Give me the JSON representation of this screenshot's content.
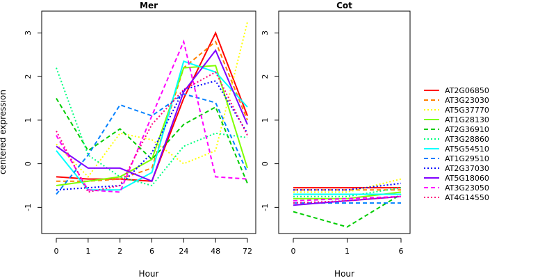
{
  "chart_data": {
    "type": "line",
    "ylabel": "centered expression",
    "xlabel": "Hour",
    "ylim": [
      -1.6,
      3.5
    ],
    "yticks": [
      -1,
      0,
      1,
      2,
      3
    ],
    "legend_position": "right",
    "grid": false,
    "legend": [
      {
        "name": "AT2G06850",
        "color": "#FF0000",
        "dash": "solid"
      },
      {
        "name": "AT3G23030",
        "color": "#FF8000",
        "dash": "dashed"
      },
      {
        "name": "AT5G37770",
        "color": "#FFFF00",
        "dash": "dotted"
      },
      {
        "name": "AT1G28130",
        "color": "#80FF00",
        "dash": "solid"
      },
      {
        "name": "AT2G36910",
        "color": "#00CC00",
        "dash": "dashed"
      },
      {
        "name": "AT3G28860",
        "color": "#00FF80",
        "dash": "dotted"
      },
      {
        "name": "AT5G54510",
        "color": "#00FFFF",
        "dash": "solid"
      },
      {
        "name": "AT1G29510",
        "color": "#0080FF",
        "dash": "dashed"
      },
      {
        "name": "AT2G37030",
        "color": "#0000FF",
        "dash": "dotted"
      },
      {
        "name": "AT5G18060",
        "color": "#8000FF",
        "dash": "solid"
      },
      {
        "name": "AT3G23050",
        "color": "#FF00FF",
        "dash": "dashed"
      },
      {
        "name": "AT4G14550",
        "color": "#FF0080",
        "dash": "dotted"
      }
    ],
    "panels": [
      {
        "title": "Mer",
        "categories": [
          "0",
          "1",
          "2",
          "6",
          "24",
          "48",
          "72"
        ],
        "series": [
          [
            -0.3,
            -0.35,
            -0.35,
            -0.4,
            1.5,
            3.0,
            1.1
          ],
          [
            -0.4,
            -0.4,
            -0.35,
            -0.1,
            2.2,
            2.8,
            1.0
          ],
          [
            0.45,
            -0.3,
            0.7,
            0.55,
            0.0,
            0.3,
            3.25
          ],
          [
            -0.5,
            -0.4,
            -0.3,
            0.1,
            2.2,
            2.25,
            -0.1
          ],
          [
            1.5,
            0.3,
            0.8,
            0.1,
            0.9,
            1.3,
            -0.45
          ],
          [
            2.2,
            0.2,
            -0.3,
            -0.5,
            0.4,
            0.7,
            0.6
          ],
          [
            0.3,
            -0.6,
            -0.6,
            -0.2,
            2.35,
            2.1,
            1.3
          ],
          [
            -0.7,
            0.2,
            1.35,
            1.1,
            1.6,
            1.4,
            -0.2
          ],
          [
            -0.6,
            -0.55,
            -0.5,
            0.25,
            1.7,
            1.9,
            0.7
          ],
          [
            0.4,
            -0.1,
            -0.1,
            -0.4,
            1.65,
            2.6,
            0.9
          ],
          [
            0.65,
            -0.6,
            -0.65,
            1.1,
            2.8,
            -0.3,
            -0.35
          ],
          [
            0.75,
            -0.65,
            -0.5,
            0.9,
            1.7,
            2.1,
            0.65
          ]
        ]
      },
      {
        "title": "Cot",
        "categories": [
          "0",
          "1",
          "6"
        ],
        "series": [
          [
            -0.55,
            -0.55,
            -0.55
          ],
          [
            -0.6,
            -0.6,
            -0.6
          ],
          [
            -0.65,
            -0.65,
            -0.35
          ],
          [
            -0.8,
            -0.8,
            -0.65
          ],
          [
            -1.1,
            -1.45,
            -0.7
          ],
          [
            -0.75,
            -0.75,
            -0.55
          ],
          [
            -0.7,
            -0.7,
            -0.7
          ],
          [
            -0.9,
            -0.9,
            -0.9
          ],
          [
            -0.6,
            -0.6,
            -0.45
          ],
          [
            -0.95,
            -0.85,
            -0.75
          ],
          [
            -0.85,
            -0.8,
            -0.75
          ],
          [
            -0.9,
            -0.85,
            -0.75
          ]
        ]
      }
    ]
  }
}
